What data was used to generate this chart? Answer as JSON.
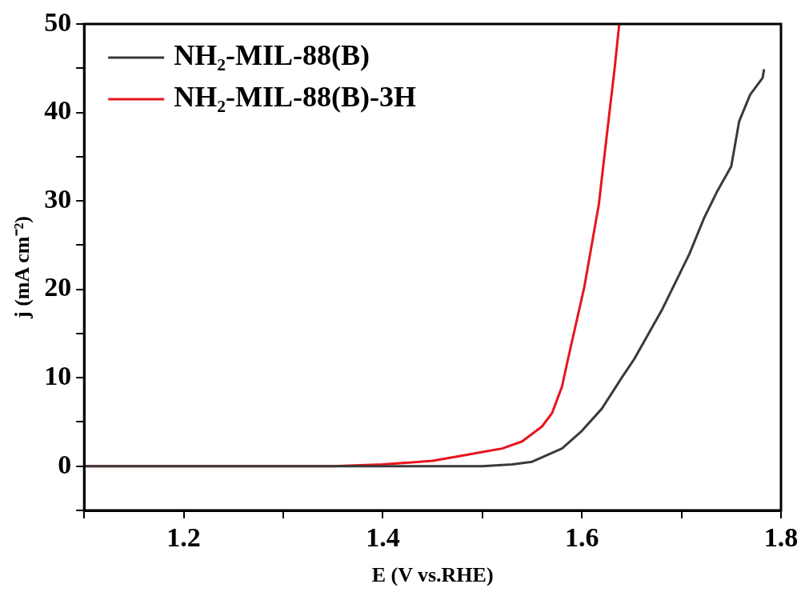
{
  "chart_data": {
    "type": "line",
    "xlabel": "E (V vs.RHE)",
    "ylabel": "j (mA cm⁻²)",
    "xlim": [
      1.1,
      1.8
    ],
    "xticks": [
      {
        "value": 1.1,
        "label": null
      },
      1.2,
      {
        "value": 1.3,
        "label": null
      },
      1.4,
      {
        "value": 1.5,
        "label": null
      },
      1.6,
      {
        "value": 1.7,
        "label": null
      },
      1.8
    ],
    "ylim": [
      -5,
      50
    ],
    "yticks": [
      {
        "value": -5,
        "label": null
      },
      0,
      {
        "value": 5,
        "label": null
      },
      10,
      {
        "value": 15,
        "label": null
      },
      20,
      {
        "value": 25,
        "label": null
      },
      30,
      {
        "value": 35,
        "label": null
      },
      40,
      {
        "value": 45,
        "label": null
      },
      50
    ],
    "grid": false,
    "legend": "top left",
    "marker": "none",
    "line_style": "solid",
    "series": [
      {
        "name": "NH₂-MIL-88(B)",
        "color": "#3a3a3a",
        "x": [
          1.1,
          1.3,
          1.45,
          1.5,
          1.53,
          1.55,
          1.58,
          1.6,
          1.62,
          1.64,
          1.6525,
          1.681,
          1.708,
          1.7225,
          1.736,
          1.75,
          1.758,
          1.769,
          1.7815,
          1.783
        ],
        "values": [
          0,
          0,
          0,
          0,
          0.2,
          0.5,
          2,
          4,
          6.5,
          10,
          12.1,
          17.8,
          24,
          28,
          31.1,
          33.9,
          39,
          42,
          43.9,
          44.9
        ]
      },
      {
        "name": "NH₂-MIL-88(B)-3H",
        "color": "#e8141c",
        "x": [
          1.1,
          1.3,
          1.35,
          1.4,
          1.45,
          1.48,
          1.5,
          1.52,
          1.54,
          1.56,
          1.57,
          1.58,
          1.586,
          1.6025,
          1.617,
          1.625,
          1.633,
          1.6375
        ],
        "values": [
          0,
          0,
          0,
          0.2,
          0.6,
          1.2,
          1.6,
          2,
          2.8,
          4.5,
          6,
          9,
          12.1,
          20.3,
          29.6,
          37.4,
          45.1,
          50
        ]
      }
    ]
  }
}
